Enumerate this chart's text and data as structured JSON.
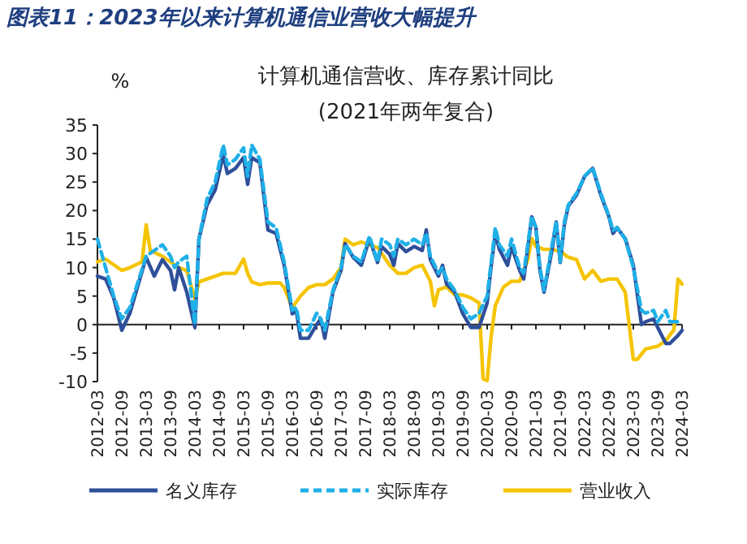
{
  "chart_data": {
    "type": "line",
    "title": "图表11：2023年以来计算机通信业营收大幅提升",
    "subtitle": "计算机通信营收、库存累计同比\n(2021年两年复合)",
    "ylabel": "%",
    "xlim": [
      "2012-03",
      "2024-03"
    ],
    "xticks": [
      "2012-03",
      "2012-09",
      "2013-03",
      "2013-09",
      "2014-03",
      "2014-09",
      "2015-03",
      "2015-09",
      "2016-03",
      "2016-09",
      "2017-03",
      "2017-09",
      "2018-03",
      "2018-09",
      "2019-03",
      "2019-09",
      "2020-03",
      "2020-09",
      "2021-03",
      "2021-09",
      "2022-03",
      "2022-09",
      "2023-03",
      "2023-09",
      "2024-03"
    ],
    "ylim": [
      -10,
      35
    ],
    "yticks": [
      -10,
      -5,
      0,
      5,
      10,
      15,
      20,
      25,
      30,
      35
    ],
    "legend": "bottom",
    "series": [
      {
        "name": "名义库存",
        "color": "#2f4f9a",
        "line_style": "solid",
        "x": [
          "2012-03",
          "2012-05",
          "2012-07",
          "2012-09",
          "2012-11",
          "2013-03",
          "2013-05",
          "2013-07",
          "2013-09",
          "2013-10",
          "2013-11",
          "2014-01",
          "2014-03",
          "2014-04",
          "2014-06",
          "2014-08",
          "2014-10",
          "2014-11",
          "2015-01",
          "2015-03",
          "2015-04",
          "2015-05",
          "2015-07",
          "2015-09",
          "2015-11",
          "2016-01",
          "2016-03",
          "2016-04",
          "2016-05",
          "2016-07",
          "2016-09",
          "2016-10",
          "2016-11",
          "2017-01",
          "2017-03",
          "2017-04",
          "2017-06",
          "2017-08",
          "2017-10",
          "2017-12",
          "2018-01",
          "2018-03",
          "2018-04",
          "2018-05",
          "2018-07",
          "2018-09",
          "2018-11",
          "2018-12",
          "2019-01",
          "2019-03",
          "2019-04",
          "2019-05",
          "2019-07",
          "2019-09",
          "2019-11",
          "2020-01",
          "2020-03",
          "2020-04",
          "2020-05",
          "2020-06",
          "2020-08",
          "2020-09",
          "2020-11",
          "2020-12",
          "2021-02",
          "2021-03",
          "2021-04",
          "2021-05",
          "2021-07",
          "2021-08",
          "2021-09",
          "2021-10",
          "2021-11",
          "2022-01",
          "2022-03",
          "2022-05",
          "2022-07",
          "2022-09",
          "2022-10",
          "2022-11",
          "2023-01",
          "2023-03",
          "2023-05",
          "2023-06",
          "2023-08",
          "2023-09",
          "2023-11",
          "2023-12",
          "2024-02",
          "2024-03"
        ],
        "values": [
          8.5,
          8,
          4.7,
          -1,
          2,
          11.8,
          8.5,
          11.4,
          9.5,
          6.1,
          10,
          5.7,
          -0.5,
          15,
          21,
          23.6,
          29.8,
          26.5,
          27.4,
          29.3,
          24.6,
          29.3,
          28.4,
          16.6,
          16,
          10.4,
          1.9,
          2.4,
          -2.4,
          -2.4,
          0,
          1,
          -2.4,
          5.7,
          9.5,
          14.2,
          11.8,
          10.4,
          15.1,
          10.9,
          13.7,
          12.3,
          10.4,
          14.2,
          12.8,
          13.7,
          13,
          16.6,
          11.4,
          8.5,
          10.4,
          7.1,
          5.7,
          1.9,
          -0.5,
          -0.5,
          3.8,
          10.4,
          16,
          13.2,
          10.4,
          13.7,
          9.5,
          8,
          18.9,
          17,
          9.5,
          5.7,
          13.2,
          18,
          10.9,
          17.5,
          20.8,
          22.7,
          26,
          27.4,
          22.7,
          18.9,
          16,
          17,
          15.1,
          10.4,
          0,
          0.5,
          1,
          -0.5,
          -3.3,
          -3.3,
          -1.9,
          -1
        ]
      },
      {
        "name": "实际库存",
        "color": "#1fb0e8",
        "line_style": "dashed",
        "x": [
          "2012-03",
          "2012-05",
          "2012-07",
          "2012-09",
          "2012-11",
          "2013-03",
          "2013-05",
          "2013-07",
          "2013-09",
          "2013-10",
          "2013-11",
          "2014-01",
          "2014-03",
          "2014-04",
          "2014-06",
          "2014-08",
          "2014-10",
          "2014-11",
          "2015-01",
          "2015-03",
          "2015-04",
          "2015-05",
          "2015-07",
          "2015-09",
          "2015-11",
          "2016-01",
          "2016-03",
          "2016-04",
          "2016-05",
          "2016-07",
          "2016-09",
          "2016-10",
          "2016-11",
          "2017-01",
          "2017-03",
          "2017-04",
          "2017-06",
          "2017-08",
          "2017-10",
          "2017-12",
          "2018-01",
          "2018-03",
          "2018-04",
          "2018-05",
          "2018-07",
          "2018-09",
          "2018-11",
          "2018-12",
          "2019-01",
          "2019-03",
          "2019-04",
          "2019-05",
          "2019-07",
          "2019-09",
          "2019-11",
          "2020-01",
          "2020-03",
          "2020-04",
          "2020-05",
          "2020-06",
          "2020-08",
          "2020-09",
          "2020-11",
          "2020-12",
          "2021-02",
          "2021-03",
          "2021-04",
          "2021-05",
          "2021-07",
          "2021-08",
          "2021-09",
          "2021-10",
          "2021-11",
          "2022-01",
          "2022-03",
          "2022-05",
          "2022-07",
          "2022-09",
          "2022-10",
          "2022-11",
          "2023-01",
          "2023-03",
          "2023-05",
          "2023-06",
          "2023-08",
          "2023-09",
          "2023-11",
          "2023-12",
          "2024-02",
          "2024-03"
        ],
        "values": [
          15,
          10,
          5,
          1,
          3,
          12,
          13,
          14,
          12,
          10,
          11,
          12,
          0,
          15,
          22,
          25,
          31.5,
          28,
          29,
          31,
          26,
          31.5,
          29,
          18,
          17,
          11,
          2.5,
          3,
          -1,
          -1,
          2,
          1,
          -1,
          6,
          10,
          14,
          12,
          11,
          15.5,
          11,
          15,
          14,
          12,
          15,
          14,
          15,
          14,
          16,
          12,
          9,
          10,
          8,
          6,
          3,
          1,
          2,
          5,
          11,
          17,
          14,
          12,
          15,
          10,
          9,
          19,
          17,
          10,
          6,
          14,
          18,
          11,
          18,
          21,
          23,
          26,
          27.5,
          23,
          19,
          16.5,
          17,
          15,
          10,
          2.5,
          2,
          2.5,
          0.5,
          2.5,
          0.5,
          0.5,
          0.5
        ]
      },
      {
        "name": "营业收入",
        "color": "#f5c400",
        "line_style": "solid",
        "x": [
          "2012-03",
          "2012-05",
          "2012-07",
          "2012-09",
          "2012-11",
          "2013-02",
          "2013-03",
          "2013-04",
          "2013-07",
          "2013-09",
          "2013-11",
          "2014-01",
          "2014-03",
          "2014-04",
          "2014-06",
          "2014-08",
          "2014-10",
          "2015-01",
          "2015-03",
          "2015-04",
          "2015-05",
          "2015-07",
          "2015-09",
          "2015-12",
          "2016-01",
          "2016-03",
          "2016-05",
          "2016-07",
          "2016-09",
          "2016-11",
          "2017-01",
          "2017-03",
          "2017-04",
          "2017-06",
          "2017-08",
          "2017-10",
          "2017-12",
          "2018-01",
          "2018-03",
          "2018-05",
          "2018-07",
          "2018-09",
          "2018-11",
          "2019-01",
          "2019-02",
          "2019-03",
          "2019-05",
          "2019-07",
          "2019-09",
          "2019-11",
          "2020-01",
          "2020-02",
          "2020-03",
          "2020-04",
          "2020-05",
          "2020-07",
          "2020-09",
          "2020-11",
          "2021-01",
          "2021-02",
          "2021-03",
          "2021-05",
          "2021-07",
          "2021-09",
          "2021-11",
          "2022-01",
          "2022-03",
          "2022-05",
          "2022-07",
          "2022-09",
          "2022-11",
          "2023-01",
          "2023-03",
          "2023-04",
          "2023-06",
          "2023-09",
          "2023-11",
          "2024-01",
          "2024-02",
          "2024-03"
        ],
        "values": [
          11,
          11.5,
          10.5,
          9.5,
          10,
          11,
          17.5,
          13,
          12,
          11,
          10,
          9.5,
          4.5,
          7.5,
          8,
          8.5,
          9,
          9,
          11.5,
          9,
          7.5,
          7,
          7.3,
          7.3,
          6.5,
          3,
          5,
          6.5,
          7,
          7,
          8,
          10,
          15,
          14,
          14.5,
          14,
          13.5,
          12.5,
          10.4,
          9,
          9,
          10,
          10.4,
          7.6,
          3.3,
          6.1,
          6.6,
          5.2,
          5.2,
          4.7,
          3.8,
          -9.5,
          -9.8,
          -1.9,
          3.3,
          6.6,
          7.6,
          7.6,
          11.4,
          15.1,
          13.7,
          13.2,
          13.2,
          12.8,
          11.8,
          11.4,
          8,
          9.5,
          7.6,
          8,
          8,
          5.7,
          -6.1,
          -6.1,
          -4.3,
          -3.8,
          -2.8,
          -0.9,
          8,
          7.1
        ]
      }
    ]
  }
}
